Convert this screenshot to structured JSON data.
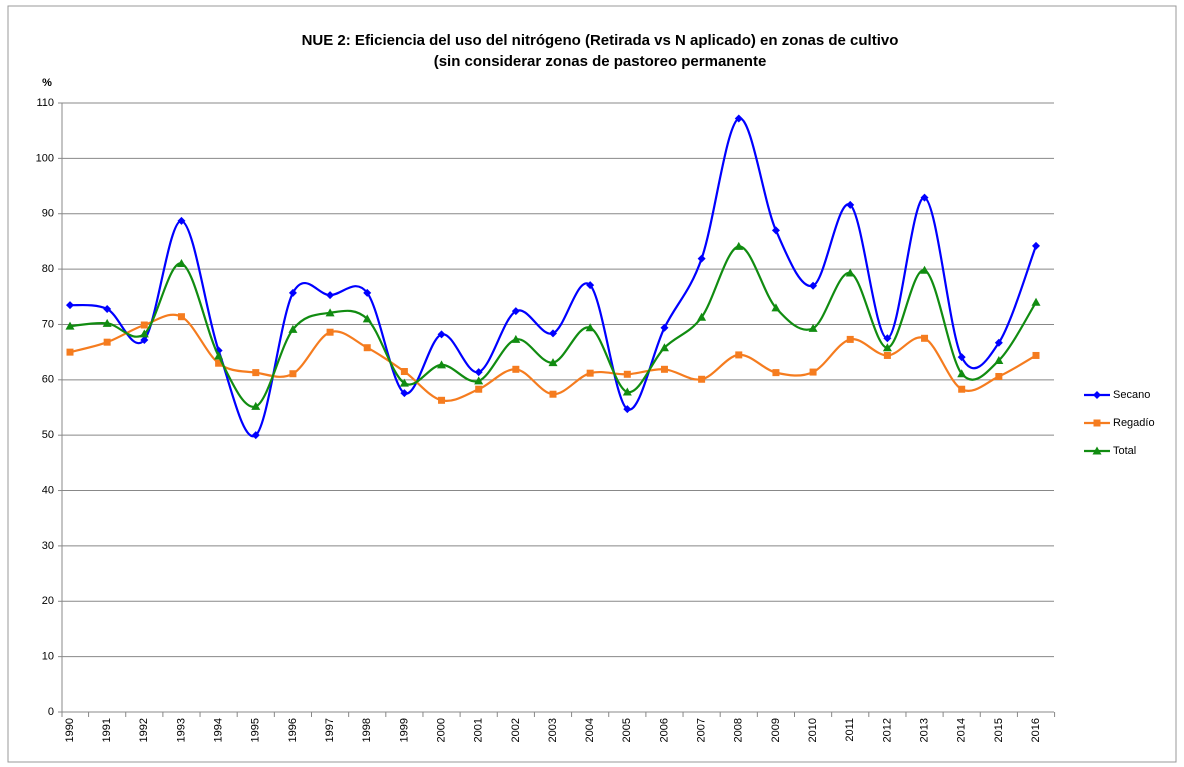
{
  "chart_data": {
    "type": "line",
    "title": [
      "NUE 2: Eficiencia del uso del nitrógeno (Retirada vs N aplicado) en zonas de cultivo",
      "(sin considerar zonas de pastoreo permanente"
    ],
    "y_label": "%",
    "categories": [
      "1990",
      "1991",
      "1992",
      "1993",
      "1994",
      "1995",
      "1996",
      "1997",
      "1998",
      "1999",
      "2000",
      "2001",
      "2002",
      "2003",
      "2004",
      "2005",
      "2006",
      "2007",
      "2008",
      "2009",
      "2010",
      "2011",
      "2012",
      "2013",
      "2014",
      "2015",
      "2016"
    ],
    "series": [
      {
        "name": "Secano",
        "color": "#0000ff",
        "marker": "diamond",
        "values": [
          73.5,
          72.8,
          67.2,
          88.7,
          65.3,
          50.0,
          75.7,
          75.3,
          75.7,
          57.6,
          68.2,
          61.4,
          72.4,
          68.4,
          77.1,
          54.7,
          69.4,
          81.9,
          107.2,
          87.0,
          77.0,
          91.6,
          67.5,
          92.9,
          64.1,
          66.7,
          84.2
        ]
      },
      {
        "name": "Regadío",
        "color": "#f57c1f",
        "marker": "square",
        "values": [
          65.0,
          66.8,
          69.9,
          71.4,
          63.0,
          61.3,
          61.1,
          68.6,
          65.8,
          61.5,
          56.3,
          58.3,
          61.9,
          57.4,
          61.2,
          61.0,
          61.9,
          60.1,
          64.5,
          61.3,
          61.4,
          67.3,
          64.4,
          67.5,
          58.3,
          60.6,
          64.4
        ]
      },
      {
        "name": "Total",
        "color": "#118c11",
        "marker": "triangle",
        "values": [
          69.7,
          70.2,
          68.3,
          81.0,
          64.3,
          55.2,
          69.1,
          72.1,
          71.0,
          59.4,
          62.7,
          59.8,
          67.3,
          63.1,
          69.4,
          57.8,
          65.8,
          71.3,
          84.1,
          73.0,
          69.3,
          79.3,
          65.8,
          79.8,
          61.1,
          63.5,
          74.0
        ]
      }
    ],
    "ylim": [
      0,
      110
    ],
    "yticks": [
      0,
      10,
      20,
      30,
      40,
      50,
      60,
      70,
      80,
      90,
      100,
      110
    ],
    "grid": true,
    "smooth": true,
    "legend": "right"
  }
}
